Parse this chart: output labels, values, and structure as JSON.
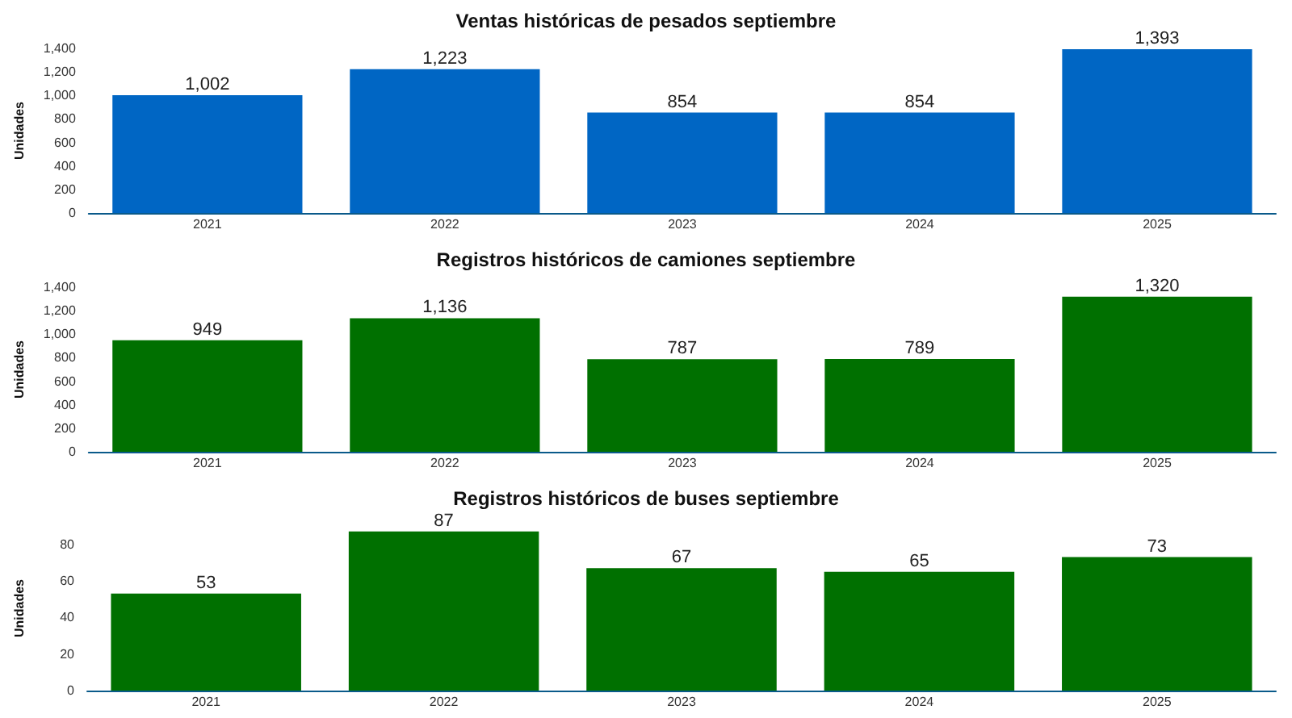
{
  "chart_data": [
    {
      "type": "bar",
      "title": "Ventas históricas de pesados septiembre",
      "ylabel": "Unidades",
      "categories": [
        "2021",
        "2022",
        "2023",
        "2024",
        "2025"
      ],
      "values": [
        1002,
        1223,
        854,
        854,
        1393
      ],
      "value_labels": [
        "1,002",
        "1,223",
        "854",
        "854",
        "1,393"
      ],
      "color": "#0066c4",
      "ylim": [
        0,
        1400
      ],
      "yticks": [
        0,
        200,
        400,
        600,
        800,
        {
          "value": 1000,
          "label": "1,000"
        },
        {
          "value": 1200,
          "label": "1,200"
        },
        {
          "value": 1400,
          "label": "1,400"
        }
      ],
      "grid": false
    },
    {
      "type": "bar",
      "title": "Registros históricos de camiones septiembre",
      "ylabel": "Unidades",
      "categories": [
        "2021",
        "2022",
        "2023",
        "2024",
        "2025"
      ],
      "values": [
        949,
        1136,
        787,
        789,
        1320
      ],
      "value_labels": [
        "949",
        "1,136",
        "787",
        "789",
        "1,320"
      ],
      "color": "#007000",
      "ylim": [
        0,
        1400
      ],
      "yticks": [
        0,
        200,
        400,
        600,
        800,
        {
          "value": 1000,
          "label": "1,000"
        },
        {
          "value": 1200,
          "label": "1,200"
        },
        {
          "value": 1400,
          "label": "1,400"
        }
      ],
      "grid": false
    },
    {
      "type": "bar",
      "title": "Registros históricos de buses septiembre",
      "ylabel": "Unidades",
      "categories": [
        "2021",
        "2022",
        "2023",
        "2024",
        "2025"
      ],
      "values": [
        53,
        87,
        67,
        65,
        73
      ],
      "color": "#007000",
      "ylim": [
        0,
        90
      ],
      "yticks": [
        0,
        20,
        40,
        60,
        80
      ],
      "grid": false,
      "data_labels": true
    }
  ]
}
